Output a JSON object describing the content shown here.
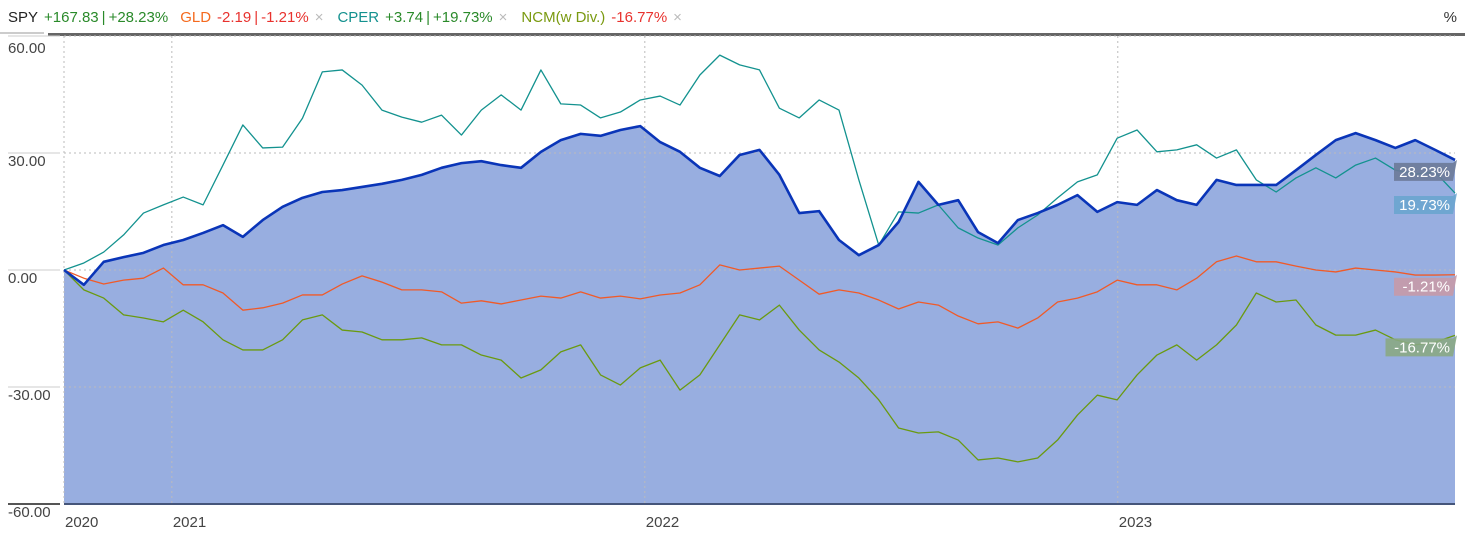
{
  "legend": [
    {
      "ticker": "SPY",
      "ticker_color": "#222222",
      "change": "+167.83",
      "pct": "+28.23%",
      "value_color": "#2a8a2a",
      "closable": false
    },
    {
      "ticker": "GLD",
      "ticker_color": "#f56a1e",
      "change": "-2.19",
      "pct": "-1.21%",
      "value_color": "#e8322e",
      "closable": true,
      "close": "×"
    },
    {
      "ticker": "CPER",
      "ticker_color": "#14918f",
      "change": "+3.74",
      "pct": "+19.73%",
      "value_color": "#2a8a2a",
      "closable": true,
      "close": "×"
    },
    {
      "ticker": "NCM(w Div.)",
      "ticker_color": "#7a9a10",
      "change": null,
      "pct": "-16.77%",
      "value_color": "#e8322e",
      "closable": true,
      "close": "×"
    }
  ],
  "unit_label": "%",
  "chart_data": {
    "type": "line",
    "title": "",
    "xlabel": "",
    "ylabel": "%",
    "ylim": [
      -60,
      60
    ],
    "yticks": [
      60,
      30,
      0,
      -30,
      -60
    ],
    "ytick_labels": [
      "60.00",
      "30.00",
      "0.00",
      "-30.00",
      "-60.00"
    ],
    "x_range": [
      2020.772,
      2023.713
    ],
    "xticks": [
      {
        "label": "2020",
        "t": 2020.772
      },
      {
        "label": "2021",
        "t": 2021.0
      },
      {
        "label": "2022",
        "t": 2022.0
      },
      {
        "label": "2023",
        "t": 2023.0
      }
    ],
    "grid": true,
    "legend_position": "top",
    "series": [
      {
        "name": "SPY",
        "color": "#0a35b8",
        "area": true,
        "area_color": "#98aee0",
        "width": 2.6,
        "end_label": "28.23%",
        "end_label_bg": "#6b7a98",
        "values": [
          0,
          -3.8,
          2.1,
          3.3,
          4.4,
          6.4,
          7.7,
          9.5,
          11.5,
          8.5,
          12.8,
          16.2,
          18.5,
          20.0,
          20.5,
          21.3,
          22.1,
          23.1,
          24.4,
          26.2,
          27.4,
          27.9,
          26.9,
          26.2,
          30.3,
          33.3,
          34.9,
          34.4,
          35.9,
          36.9,
          32.8,
          30.3,
          26.2,
          24.1,
          29.5,
          30.8,
          24.4,
          14.6,
          15.1,
          7.7,
          3.8,
          6.4,
          12.3,
          22.6,
          16.7,
          17.9,
          9.7,
          6.9,
          12.8,
          14.6,
          16.7,
          19.2,
          14.9,
          17.4,
          16.7,
          20.5,
          17.9,
          16.7,
          23.1,
          21.8,
          21.8,
          21.8,
          25.6,
          29.5,
          33.3,
          35.1,
          33.3,
          31.3,
          33.3,
          30.8,
          28.23
        ]
      },
      {
        "name": "CPER",
        "color": "#13928f",
        "area": false,
        "width": 1.3,
        "end_label": "19.73%",
        "end_label_bg": "#6aa5cf",
        "values": [
          0,
          1.8,
          4.6,
          9.0,
          14.6,
          16.7,
          18.7,
          16.7,
          26.9,
          37.2,
          31.3,
          31.5,
          38.9,
          50.8,
          51.3,
          47.4,
          41.0,
          39.2,
          37.9,
          39.7,
          34.6,
          41.0,
          44.9,
          41.0,
          51.3,
          42.6,
          42.3,
          39.0,
          40.5,
          43.6,
          44.6,
          42.3,
          50.0,
          55.1,
          52.6,
          51.3,
          41.5,
          39.0,
          43.6,
          41.0,
          23.1,
          6.4,
          14.9,
          14.6,
          16.7,
          10.8,
          8.2,
          6.4,
          10.8,
          14.1,
          18.5,
          22.6,
          24.4,
          33.8,
          35.9,
          30.3,
          30.8,
          32.1,
          28.7,
          30.8,
          23.1,
          20.0,
          23.6,
          26.2,
          23.6,
          26.9,
          28.7,
          25.6,
          24.6,
          25.1,
          19.73
        ]
      },
      {
        "name": "GLD",
        "color": "#f05a28",
        "area": false,
        "width": 1.3,
        "end_label": "-1.21%",
        "end_label_bg": "#c79aa8",
        "values": [
          0,
          -2.1,
          -3.6,
          -2.6,
          -2.1,
          0.5,
          -3.8,
          -3.8,
          -5.9,
          -10.3,
          -9.7,
          -8.5,
          -6.4,
          -6.4,
          -3.6,
          -1.5,
          -3.1,
          -5.1,
          -5.1,
          -5.6,
          -8.5,
          -7.9,
          -8.7,
          -7.7,
          -6.7,
          -7.2,
          -5.6,
          -7.2,
          -6.7,
          -7.4,
          -6.4,
          -5.9,
          -3.8,
          1.3,
          0,
          0.5,
          1.0,
          -2.6,
          -6.2,
          -5.1,
          -5.9,
          -7.7,
          -10.0,
          -8.2,
          -9.0,
          -11.8,
          -13.8,
          -13.3,
          -14.9,
          -12.3,
          -8.2,
          -7.2,
          -5.6,
          -2.6,
          -3.8,
          -3.8,
          -5.1,
          -2.1,
          2.1,
          3.6,
          2.1,
          2.1,
          1.0,
          0,
          -0.5,
          0.5,
          0,
          -0.5,
          -1.3,
          -1.3,
          -1.21
        ]
      },
      {
        "name": "NCM(w Div.)",
        "color": "#6a9a10",
        "area": false,
        "width": 1.3,
        "end_label": "-16.77%",
        "end_label_bg": "#8aa884",
        "values": [
          0,
          -5.1,
          -7.2,
          -11.5,
          -12.3,
          -13.3,
          -10.3,
          -13.3,
          -17.9,
          -20.5,
          -20.5,
          -17.9,
          -12.8,
          -11.5,
          -15.4,
          -15.9,
          -17.9,
          -17.9,
          -17.4,
          -19.2,
          -19.2,
          -21.8,
          -23.1,
          -27.7,
          -25.6,
          -21.0,
          -19.2,
          -26.9,
          -29.5,
          -25.1,
          -23.1,
          -30.8,
          -26.9,
          -19.2,
          -11.5,
          -12.8,
          -9.0,
          -15.4,
          -20.5,
          -23.6,
          -27.7,
          -33.3,
          -40.5,
          -41.8,
          -41.5,
          -43.6,
          -48.7,
          -48.2,
          -49.2,
          -48.2,
          -43.6,
          -37.2,
          -32.1,
          -33.3,
          -26.9,
          -21.8,
          -19.2,
          -23.1,
          -19.2,
          -14.1,
          -5.9,
          -8.2,
          -7.7,
          -14.1,
          -16.7,
          -16.7,
          -15.4,
          -17.9,
          -19.2,
          -18.5,
          -16.77
        ]
      }
    ]
  }
}
